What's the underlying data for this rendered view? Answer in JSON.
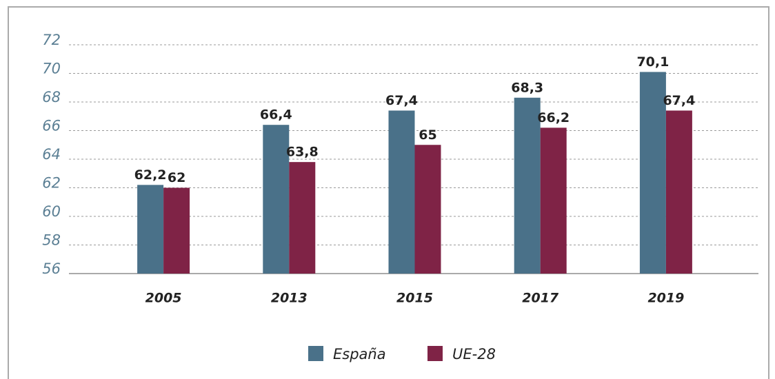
{
  "chart_data": {
    "type": "bar",
    "categories": [
      "2005",
      "2013",
      "2015",
      "2017",
      "2019"
    ],
    "series": [
      {
        "name": "España",
        "color": "#4a7189",
        "values": [
          62.2,
          66.4,
          67.4,
          68.3,
          70.1
        ],
        "value_labels": [
          "62,2",
          "66,4",
          "67,4",
          "68,3",
          "70,1"
        ]
      },
      {
        "name": "UE-28",
        "color": "#7f2346",
        "values": [
          62,
          63.8,
          65,
          66.2,
          67.4
        ],
        "value_labels": [
          "62",
          "63,8",
          "65",
          "66,2",
          "67,4"
        ]
      }
    ],
    "ylim": [
      56,
      72
    ],
    "yticks": [
      56,
      58,
      60,
      62,
      64,
      66,
      68,
      70,
      72
    ],
    "grid": true,
    "legend": "bottom"
  }
}
